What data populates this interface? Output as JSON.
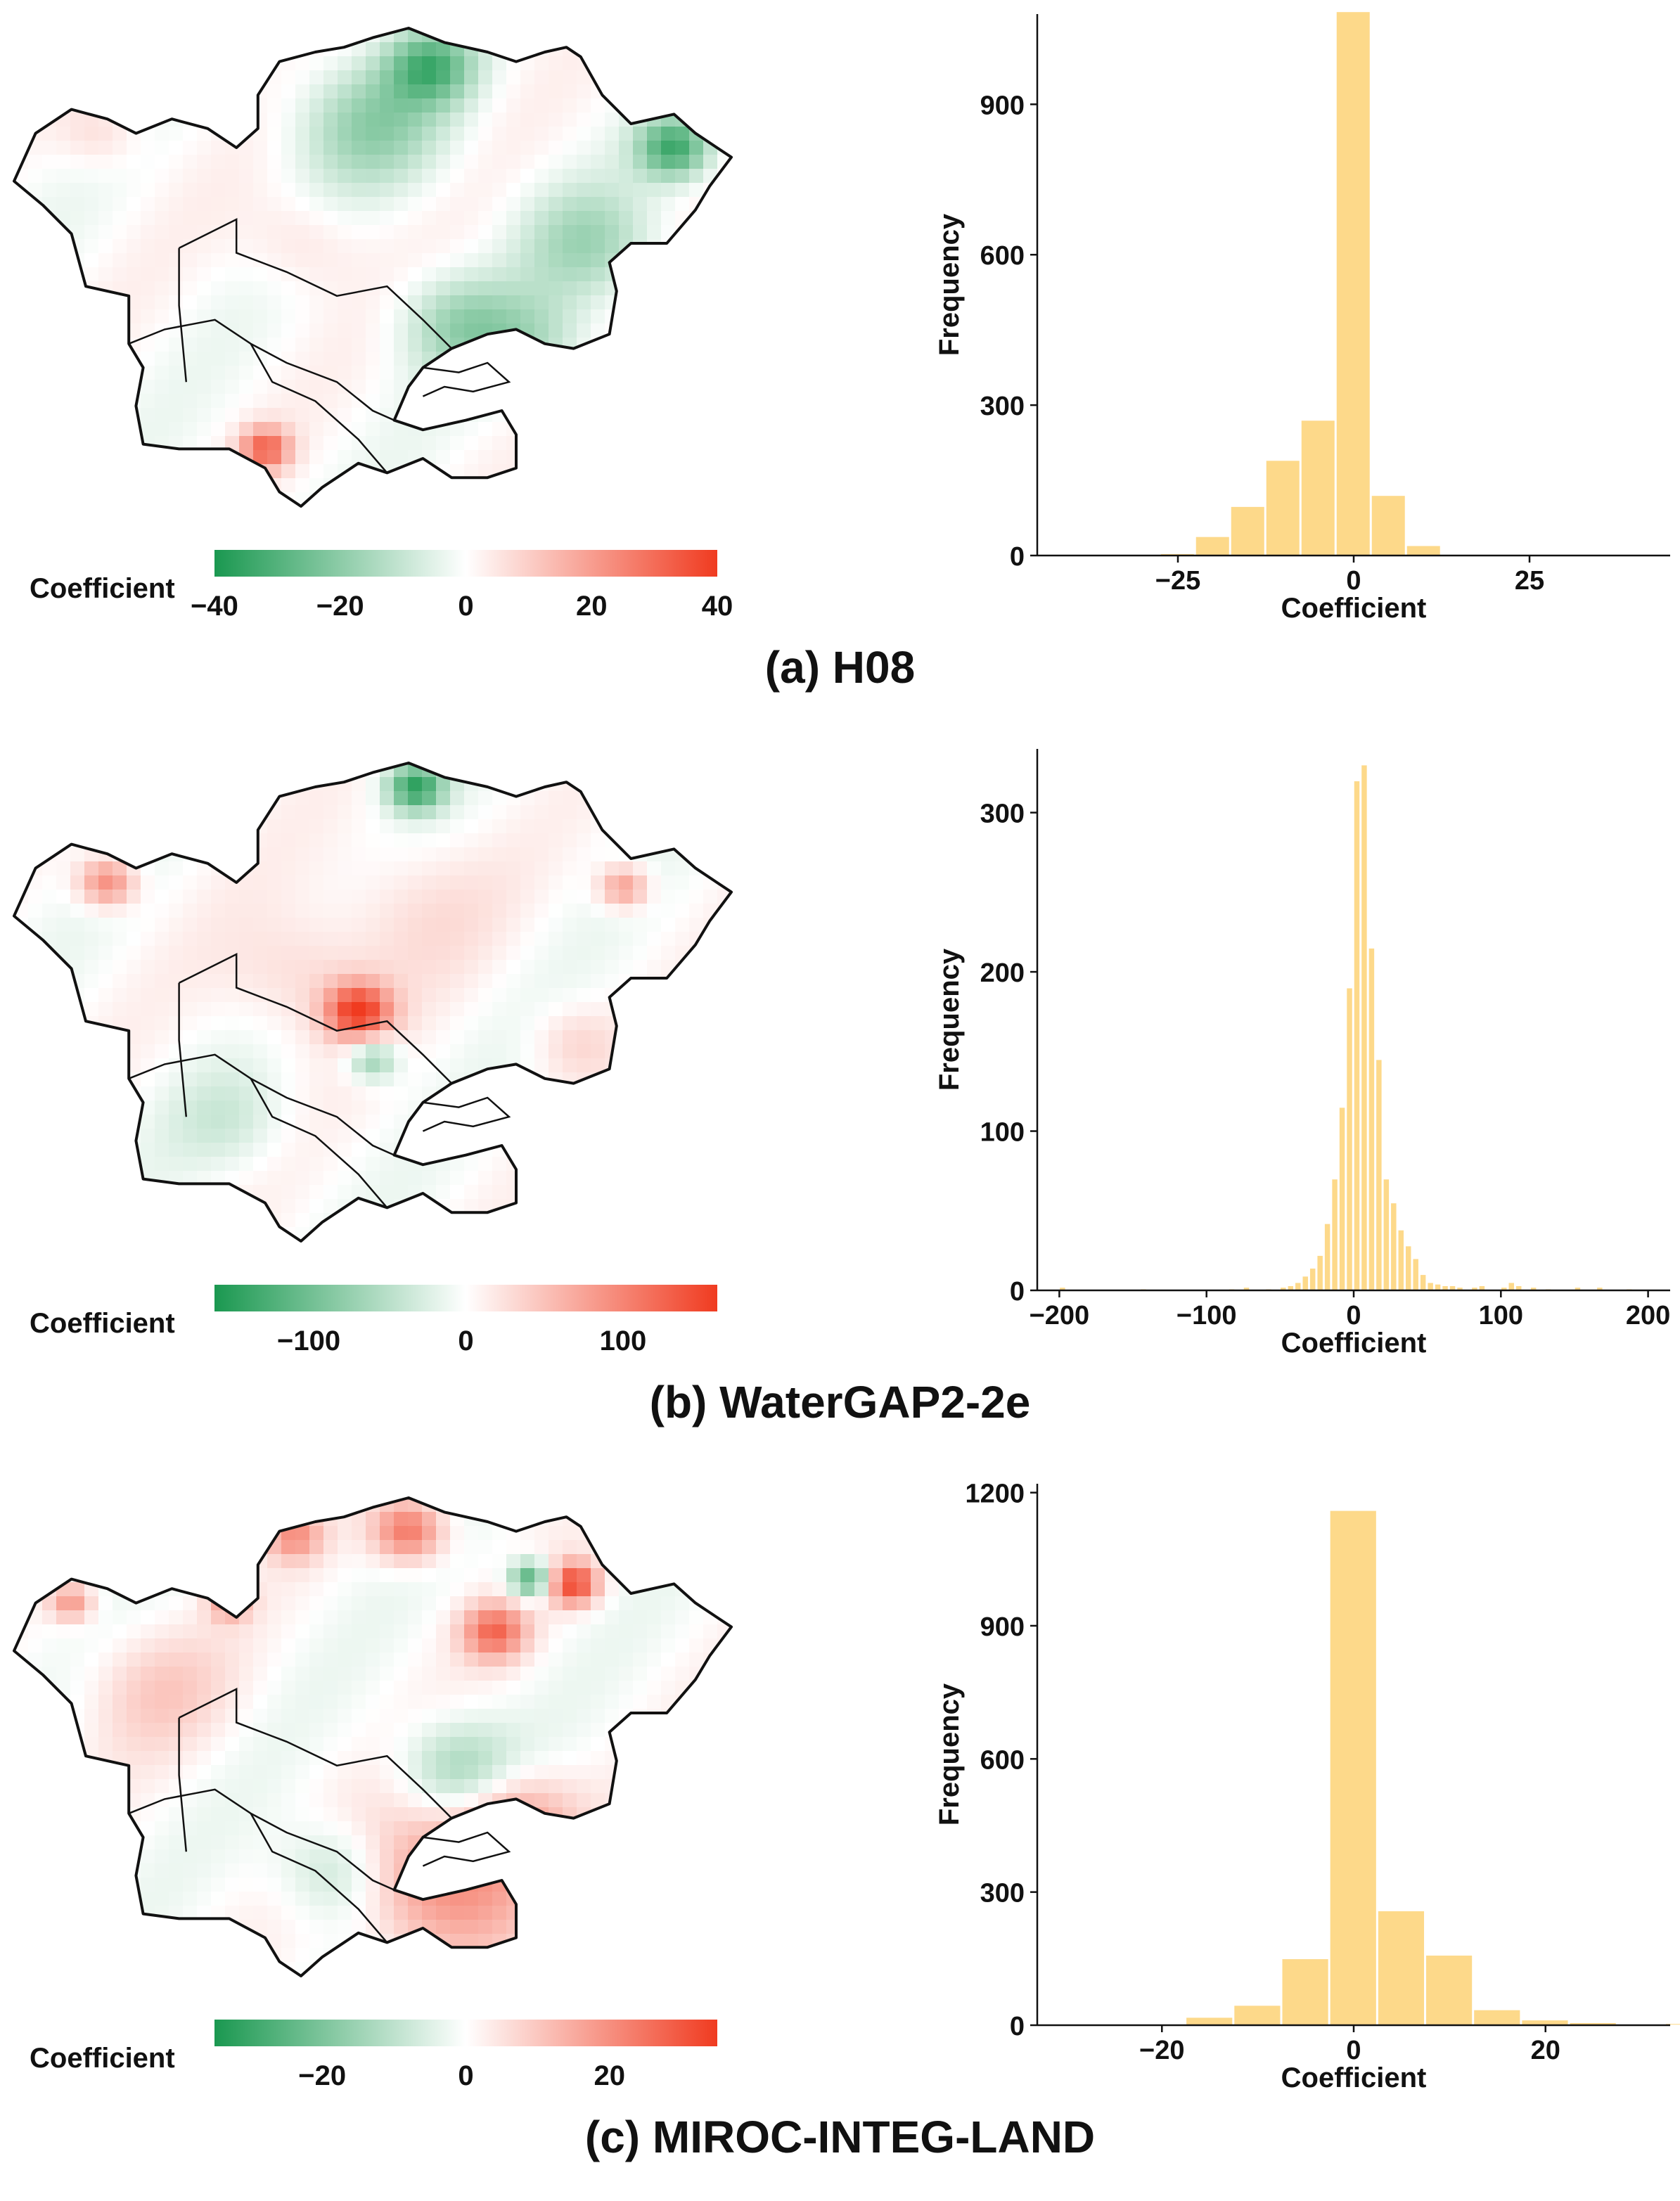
{
  "chart_data": [
    {
      "panel": "(a) H08",
      "map": {
        "legend_title": "Coefficient",
        "colorbar_ticks": [
          -40,
          -20,
          0,
          20,
          40
        ],
        "colorbar_tick_labels": [
          "−40",
          "−20",
          "0",
          "20",
          "40"
        ],
        "range": [
          -40,
          40
        ],
        "colors": {
          "low": "#1a9850",
          "mid": "#ffffff",
          "high": "#f03b20"
        },
        "hotspots": [
          {
            "u": 0.58,
            "v": 0.08,
            "value": -28,
            "r": 0.06
          },
          {
            "u": 0.92,
            "v": 0.25,
            "value": -32,
            "r": 0.05
          },
          {
            "u": 0.5,
            "v": 0.2,
            "value": -18,
            "r": 0.1
          },
          {
            "u": 0.8,
            "v": 0.45,
            "value": -15,
            "r": 0.09
          },
          {
            "u": 0.62,
            "v": 0.62,
            "value": -16,
            "r": 0.08
          },
          {
            "u": 0.72,
            "v": 0.66,
            "value": -12,
            "r": 0.08
          },
          {
            "u": 0.35,
            "v": 0.88,
            "value": 30,
            "r": 0.035
          },
          {
            "u": 0.12,
            "v": 0.22,
            "value": 8,
            "r": 0.06
          },
          {
            "u": 0.4,
            "v": 0.45,
            "value": 7,
            "r": 0.08
          }
        ]
      },
      "histogram": {
        "type": "bar",
        "xlabel": "Coefficient",
        "ylabel": "Frequency",
        "xlim": [
          -45,
          45
        ],
        "ylim": [
          0,
          1080
        ],
        "xticks": [
          -25,
          0,
          25
        ],
        "xtick_labels": [
          "−25",
          "0",
          "25"
        ],
        "yticks": [
          0,
          300,
          600,
          900
        ],
        "bar_color": "#fdd98a",
        "bins": [
          {
            "x0": -42.5,
            "x1": -37.5,
            "value": 1
          },
          {
            "x0": -37.5,
            "x1": -32.5,
            "value": 1
          },
          {
            "x0": -32.5,
            "x1": -27.5,
            "value": 2
          },
          {
            "x0": -27.5,
            "x1": -22.5,
            "value": 4
          },
          {
            "x0": -22.5,
            "x1": -17.5,
            "value": 38
          },
          {
            "x0": -17.5,
            "x1": -12.5,
            "value": 98
          },
          {
            "x0": -12.5,
            "x1": -7.5,
            "value": 190
          },
          {
            "x0": -7.5,
            "x1": -2.5,
            "value": 270
          },
          {
            "x0": -2.5,
            "x1": 2.5,
            "value": 1085
          },
          {
            "x0": 2.5,
            "x1": 7.5,
            "value": 120
          },
          {
            "x0": 7.5,
            "x1": 12.5,
            "value": 20
          },
          {
            "x0": 12.5,
            "x1": 17.5,
            "value": 2
          }
        ]
      }
    },
    {
      "panel": "(b) WaterGAP2-2e",
      "map": {
        "legend_title": "Coefficient",
        "colorbar_ticks": [
          -100,
          0,
          100
        ],
        "colorbar_tick_labels": [
          "−100",
          "0",
          "100"
        ],
        "range": [
          -160,
          160
        ],
        "colors": {
          "low": "#1a9850",
          "mid": "#ffffff",
          "high": "#f03b20"
        },
        "hotspots": [
          {
            "u": 0.56,
            "v": 0.05,
            "value": -140,
            "r": 0.04
          },
          {
            "u": 0.13,
            "v": 0.25,
            "value": 100,
            "r": 0.04
          },
          {
            "u": 0.85,
            "v": 0.26,
            "value": 85,
            "r": 0.035
          },
          {
            "u": 0.48,
            "v": 0.52,
            "value": 150,
            "r": 0.045
          },
          {
            "u": 0.5,
            "v": 0.62,
            "value": -80,
            "r": 0.035
          },
          {
            "u": 0.4,
            "v": 0.45,
            "value": 35,
            "r": 0.1
          },
          {
            "u": 0.55,
            "v": 0.3,
            "value": 25,
            "r": 0.12
          },
          {
            "u": 0.3,
            "v": 0.75,
            "value": -30,
            "r": 0.08
          },
          {
            "u": 0.78,
            "v": 0.58,
            "value": 30,
            "r": 0.06
          }
        ]
      },
      "histogram": {
        "type": "bar",
        "xlabel": "Coefficient",
        "ylabel": "Frequency",
        "xlim": [
          -215,
          215
        ],
        "ylim": [
          0,
          340
        ],
        "xticks": [
          -200,
          -100,
          0,
          100,
          200
        ],
        "xtick_labels": [
          "−200",
          "−100",
          "0",
          "100",
          "200"
        ],
        "yticks": [
          0,
          100,
          200,
          300
        ],
        "bar_color": "#fdd98a",
        "bins": [
          {
            "x0": -200,
            "x1": -195,
            "value": 2
          },
          {
            "x0": -145,
            "x1": -140,
            "value": 1
          },
          {
            "x0": -85,
            "x1": -80,
            "value": 1
          },
          {
            "x0": -75,
            "x1": -70,
            "value": 2
          },
          {
            "x0": -60,
            "x1": -55,
            "value": 1
          },
          {
            "x0": -50,
            "x1": -45,
            "value": 2
          },
          {
            "x0": -45,
            "x1": -40,
            "value": 3
          },
          {
            "x0": -40,
            "x1": -35,
            "value": 5
          },
          {
            "x0": -35,
            "x1": -30,
            "value": 9
          },
          {
            "x0": -30,
            "x1": -25,
            "value": 14
          },
          {
            "x0": -25,
            "x1": -20,
            "value": 22
          },
          {
            "x0": -20,
            "x1": -15,
            "value": 42
          },
          {
            "x0": -15,
            "x1": -10,
            "value": 70
          },
          {
            "x0": -10,
            "x1": -5,
            "value": 115
          },
          {
            "x0": -5,
            "x1": 0,
            "value": 190
          },
          {
            "x0": 0,
            "x1": 5,
            "value": 320
          },
          {
            "x0": 5,
            "x1": 10,
            "value": 330
          },
          {
            "x0": 10,
            "x1": 15,
            "value": 215
          },
          {
            "x0": 15,
            "x1": 20,
            "value": 145
          },
          {
            "x0": 20,
            "x1": 25,
            "value": 70
          },
          {
            "x0": 25,
            "x1": 30,
            "value": 55
          },
          {
            "x0": 30,
            "x1": 35,
            "value": 38
          },
          {
            "x0": 35,
            "x1": 40,
            "value": 28
          },
          {
            "x0": 40,
            "x1": 45,
            "value": 20
          },
          {
            "x0": 45,
            "x1": 50,
            "value": 10
          },
          {
            "x0": 50,
            "x1": 55,
            "value": 5
          },
          {
            "x0": 55,
            "x1": 60,
            "value": 4
          },
          {
            "x0": 60,
            "x1": 65,
            "value": 3
          },
          {
            "x0": 65,
            "x1": 70,
            "value": 3
          },
          {
            "x0": 70,
            "x1": 75,
            "value": 2
          },
          {
            "x0": 80,
            "x1": 85,
            "value": 2
          },
          {
            "x0": 85,
            "x1": 90,
            "value": 3
          },
          {
            "x0": 100,
            "x1": 105,
            "value": 2
          },
          {
            "x0": 105,
            "x1": 110,
            "value": 5
          },
          {
            "x0": 110,
            "x1": 115,
            "value": 3
          },
          {
            "x0": 120,
            "x1": 125,
            "value": 2
          },
          {
            "x0": 130,
            "x1": 135,
            "value": 1
          },
          {
            "x0": 150,
            "x1": 155,
            "value": 2
          },
          {
            "x0": 165,
            "x1": 170,
            "value": 2
          },
          {
            "x0": 185,
            "x1": 190,
            "value": 1
          }
        ]
      }
    },
    {
      "panel": "(c) MIROC-INTEG-LAND",
      "map": {
        "legend_title": "Coefficient",
        "colorbar_ticks": [
          -20,
          0,
          20
        ],
        "colorbar_tick_labels": [
          "−20",
          "0",
          "20"
        ],
        "range": [
          -35,
          35
        ],
        "colors": {
          "low": "#1a9850",
          "mid": "#ffffff",
          "high": "#f03b20"
        },
        "hotspots": [
          {
            "u": 0.55,
            "v": 0.07,
            "value": 25,
            "r": 0.05
          },
          {
            "u": 0.39,
            "v": 0.08,
            "value": 18,
            "r": 0.04
          },
          {
            "u": 0.78,
            "v": 0.18,
            "value": 32,
            "r": 0.035
          },
          {
            "u": 0.72,
            "v": 0.17,
            "value": -28,
            "r": 0.03
          },
          {
            "u": 0.67,
            "v": 0.28,
            "value": 25,
            "r": 0.045
          },
          {
            "u": 0.08,
            "v": 0.22,
            "value": 18,
            "r": 0.03
          },
          {
            "u": 0.3,
            "v": 0.22,
            "value": 16,
            "r": 0.03
          },
          {
            "u": 0.6,
            "v": 0.8,
            "value": 22,
            "r": 0.12
          },
          {
            "u": 0.7,
            "v": 0.67,
            "value": 15,
            "r": 0.08
          },
          {
            "u": 0.62,
            "v": 0.57,
            "value": -15,
            "r": 0.08
          },
          {
            "u": 0.45,
            "v": 0.78,
            "value": -12,
            "r": 0.08
          },
          {
            "u": 0.2,
            "v": 0.4,
            "value": 8,
            "r": 0.1
          }
        ]
      },
      "histogram": {
        "type": "bar",
        "xlabel": "Coefficient",
        "ylabel": "Frequency",
        "xlim": [
          -33,
          33
        ],
        "ylim": [
          0,
          1220
        ],
        "xticks": [
          -20,
          0,
          20
        ],
        "xtick_labels": [
          "−20",
          "0",
          "20"
        ],
        "yticks": [
          0,
          300,
          600,
          900,
          1200
        ],
        "bar_color": "#fdd98a",
        "bins": [
          {
            "x0": -17.5,
            "x1": -12.5,
            "value": 18
          },
          {
            "x0": -12.5,
            "x1": -7.5,
            "value": 45
          },
          {
            "x0": -7.5,
            "x1": -2.5,
            "value": 150
          },
          {
            "x0": -2.5,
            "x1": 2.5,
            "value": 1160
          },
          {
            "x0": 2.5,
            "x1": 7.5,
            "value": 258
          },
          {
            "x0": 7.5,
            "x1": 12.5,
            "value": 158
          },
          {
            "x0": 12.5,
            "x1": 17.5,
            "value": 35
          },
          {
            "x0": 17.5,
            "x1": 22.5,
            "value": 12
          },
          {
            "x0": 22.5,
            "x1": 27.5,
            "value": 6
          },
          {
            "x0": 32.5,
            "x1": 37.5,
            "value": 4
          }
        ]
      }
    }
  ]
}
